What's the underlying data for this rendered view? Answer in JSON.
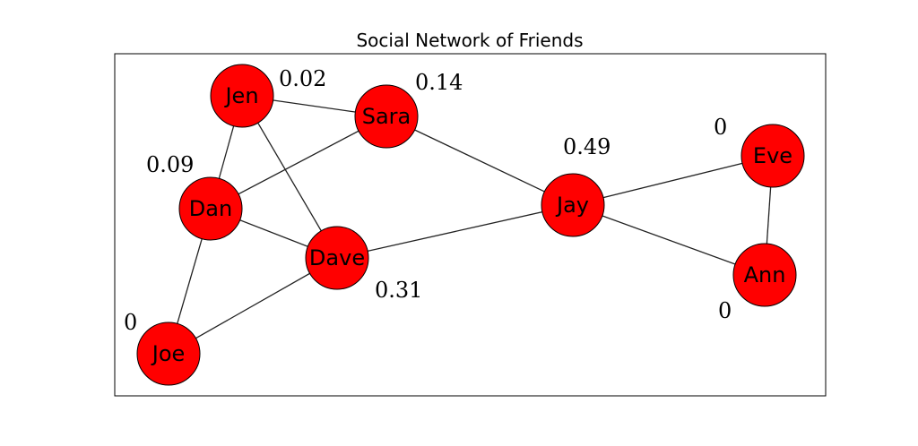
{
  "title": "Social Network of Friends",
  "colors": {
    "node_fill": "#ff0000",
    "node_stroke": "#000000",
    "edge": "#222222"
  },
  "nodes": [
    {
      "id": "jen",
      "label": "Jen",
      "value": "0.02"
    },
    {
      "id": "sara",
      "label": "Sara",
      "value": "0.14"
    },
    {
      "id": "dan",
      "label": "Dan",
      "value": "0.09"
    },
    {
      "id": "dave",
      "label": "Dave",
      "value": "0.31"
    },
    {
      "id": "joe",
      "label": "Joe",
      "value": "0"
    },
    {
      "id": "jay",
      "label": "Jay",
      "value": "0.49"
    },
    {
      "id": "eve",
      "label": "Eve",
      "value": "0"
    },
    {
      "id": "ann",
      "label": "Ann",
      "value": "0"
    }
  ],
  "edges": [
    [
      "jen",
      "sara"
    ],
    [
      "jen",
      "dan"
    ],
    [
      "jen",
      "dave"
    ],
    [
      "sara",
      "dan"
    ],
    [
      "sara",
      "jay"
    ],
    [
      "dan",
      "dave"
    ],
    [
      "dan",
      "joe"
    ],
    [
      "dave",
      "joe"
    ],
    [
      "dave",
      "jay"
    ],
    [
      "jay",
      "eve"
    ],
    [
      "jay",
      "ann"
    ],
    [
      "eve",
      "ann"
    ]
  ]
}
